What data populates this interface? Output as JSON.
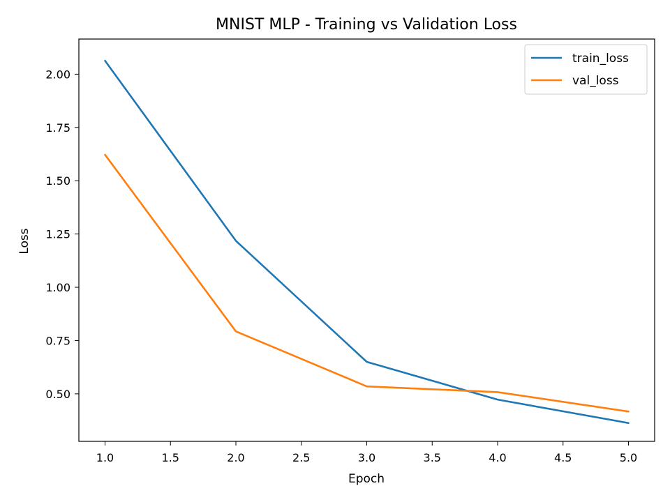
{
  "chart_data": {
    "type": "line",
    "title": "MNIST MLP - Training vs Validation Loss",
    "xlabel": "Epoch",
    "ylabel": "Loss",
    "x": [
      1,
      2,
      3,
      4,
      5
    ],
    "xlim": [
      0.8,
      5.2
    ],
    "ylim": [
      0.277,
      2.165
    ],
    "xticks": [
      "1.0",
      "1.5",
      "2.0",
      "2.5",
      "3.0",
      "3.5",
      "4.0",
      "4.5",
      "5.0"
    ],
    "yticks": [
      "0.50",
      "0.75",
      "1.00",
      "1.25",
      "1.50",
      "1.75",
      "2.00"
    ],
    "grid": false,
    "legend_position": "top-right",
    "series": [
      {
        "name": "train_loss",
        "color": "#1f77b4",
        "values": [
          2.063,
          1.218,
          0.65,
          0.473,
          0.363
        ]
      },
      {
        "name": "val_loss",
        "color": "#ff7f0e",
        "values": [
          1.622,
          0.793,
          0.535,
          0.508,
          0.417
        ]
      }
    ]
  }
}
